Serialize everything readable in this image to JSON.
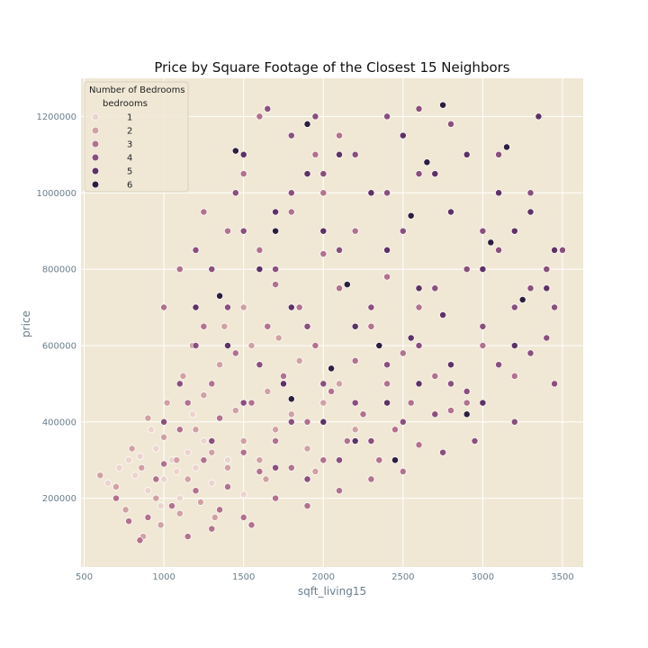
{
  "chart_data": {
    "type": "scatter",
    "title": "Price by Square Footage of the Closest 15 Neighbors",
    "xlabel": "sqft_living15",
    "ylabel": "price",
    "xlim": [
      480,
      3630
    ],
    "ylim": [
      20000,
      1300000
    ],
    "xticks": [
      500,
      1000,
      1500,
      2000,
      2500,
      3000,
      3500
    ],
    "yticks": [
      200000,
      400000,
      600000,
      800000,
      1000000,
      1200000
    ],
    "grid": true,
    "colors": {
      "background": "#f0e8d5",
      "grid": "#ffffff",
      "marker_edge": "#ffffff"
    },
    "legend": {
      "title": "Number of Bedrooms",
      "subtitle": "bedrooms",
      "placement": "top-left",
      "entries": [
        {
          "label": "1",
          "color": "#ecd3cd"
        },
        {
          "label": "2",
          "color": "#d0a0a2"
        },
        {
          "label": "3",
          "color": "#b2718d"
        },
        {
          "label": "4",
          "color": "#8b4f7d"
        },
        {
          "label": "5",
          "color": "#5e3265"
        },
        {
          "label": "6",
          "color": "#2d1e3e"
        }
      ]
    },
    "series": [
      {
        "name": "1",
        "color": "#ecd3cd",
        "points": [
          [
            650,
            240000
          ],
          [
            720,
            280000
          ],
          [
            780,
            300000
          ],
          [
            820,
            260000
          ],
          [
            900,
            220000
          ],
          [
            950,
            330000
          ],
          [
            1000,
            250000
          ],
          [
            1050,
            300000
          ],
          [
            1100,
            200000
          ],
          [
            1150,
            320000
          ],
          [
            1200,
            280000
          ],
          [
            1250,
            350000
          ],
          [
            1300,
            240000
          ],
          [
            850,
            310000
          ],
          [
            920,
            380000
          ],
          [
            1080,
            270000
          ],
          [
            1180,
            420000
          ],
          [
            1400,
            300000
          ],
          [
            1500,
            210000
          ],
          [
            980,
            180000
          ]
        ]
      },
      {
        "name": "2",
        "color": "#d0a0a2",
        "points": [
          [
            600,
            260000
          ],
          [
            700,
            230000
          ],
          [
            760,
            170000
          ],
          [
            800,
            330000
          ],
          [
            860,
            280000
          ],
          [
            900,
            410000
          ],
          [
            950,
            200000
          ],
          [
            1000,
            360000
          ],
          [
            1020,
            450000
          ],
          [
            1080,
            300000
          ],
          [
            1120,
            520000
          ],
          [
            1150,
            250000
          ],
          [
            1200,
            380000
          ],
          [
            1250,
            470000
          ],
          [
            1300,
            320000
          ],
          [
            1350,
            550000
          ],
          [
            1400,
            280000
          ],
          [
            1450,
            430000
          ],
          [
            1500,
            350000
          ],
          [
            1550,
            600000
          ],
          [
            1600,
            300000
          ],
          [
            1650,
            480000
          ],
          [
            1700,
            380000
          ],
          [
            1800,
            420000
          ],
          [
            1900,
            330000
          ],
          [
            2000,
            450000
          ],
          [
            1100,
            160000
          ],
          [
            1230,
            190000
          ],
          [
            1320,
            150000
          ],
          [
            980,
            130000
          ],
          [
            870,
            100000
          ],
          [
            1500,
            700000
          ],
          [
            1720,
            620000
          ],
          [
            1640,
            250000
          ],
          [
            1380,
            650000
          ],
          [
            2100,
            500000
          ],
          [
            2200,
            380000
          ],
          [
            1850,
            560000
          ],
          [
            1950,
            270000
          ],
          [
            1180,
            600000
          ]
        ]
      },
      {
        "name": "3",
        "color": "#b2718d",
        "points": [
          [
            700,
            200000
          ],
          [
            780,
            140000
          ],
          [
            850,
            90000
          ],
          [
            900,
            150000
          ],
          [
            950,
            250000
          ],
          [
            1000,
            290000
          ],
          [
            1050,
            180000
          ],
          [
            1100,
            380000
          ],
          [
            1150,
            450000
          ],
          [
            1200,
            220000
          ],
          [
            1250,
            300000
          ],
          [
            1300,
            500000
          ],
          [
            1350,
            410000
          ],
          [
            1400,
            230000
          ],
          [
            1450,
            580000
          ],
          [
            1500,
            320000
          ],
          [
            1550,
            450000
          ],
          [
            1600,
            270000
          ],
          [
            1650,
            650000
          ],
          [
            1700,
            350000
          ],
          [
            1750,
            520000
          ],
          [
            1800,
            280000
          ],
          [
            1850,
            700000
          ],
          [
            1900,
            400000
          ],
          [
            1950,
            600000
          ],
          [
            2000,
            300000
          ],
          [
            2050,
            480000
          ],
          [
            2100,
            750000
          ],
          [
            2150,
            350000
          ],
          [
            2200,
            560000
          ],
          [
            2250,
            420000
          ],
          [
            2300,
            650000
          ],
          [
            2350,
            300000
          ],
          [
            2400,
            500000
          ],
          [
            2450,
            380000
          ],
          [
            2500,
            580000
          ],
          [
            2550,
            450000
          ],
          [
            2600,
            340000
          ],
          [
            2700,
            520000
          ],
          [
            2800,
            430000
          ],
          [
            1000,
            700000
          ],
          [
            1100,
            800000
          ],
          [
            1250,
            650000
          ],
          [
            1400,
            900000
          ],
          [
            1600,
            850000
          ],
          [
            1800,
            950000
          ],
          [
            2000,
            1000000
          ],
          [
            2200,
            900000
          ],
          [
            1300,
            120000
          ],
          [
            1500,
            150000
          ],
          [
            1700,
            200000
          ],
          [
            1900,
            180000
          ],
          [
            2100,
            220000
          ],
          [
            1150,
            100000
          ],
          [
            1350,
            170000
          ],
          [
            1550,
            130000
          ],
          [
            2300,
            250000
          ],
          [
            2500,
            270000
          ],
          [
            2000,
            840000
          ],
          [
            1700,
            760000
          ],
          [
            1950,
            1100000
          ],
          [
            1500,
            1050000
          ],
          [
            1250,
            950000
          ],
          [
            2400,
            780000
          ],
          [
            2600,
            700000
          ],
          [
            1600,
            1200000
          ],
          [
            2100,
            1150000
          ],
          [
            3000,
            600000
          ],
          [
            2900,
            450000
          ],
          [
            3200,
            520000
          ]
        ]
      },
      {
        "name": "4",
        "color": "#8b4f7d",
        "points": [
          [
            1000,
            400000
          ],
          [
            1100,
            500000
          ],
          [
            1200,
            600000
          ],
          [
            1300,
            350000
          ],
          [
            1400,
            700000
          ],
          [
            1500,
            450000
          ],
          [
            1600,
            550000
          ],
          [
            1700,
            800000
          ],
          [
            1800,
            400000
          ],
          [
            1900,
            650000
          ],
          [
            2000,
            500000
          ],
          [
            2100,
            850000
          ],
          [
            2200,
            450000
          ],
          [
            2300,
            700000
          ],
          [
            2400,
            550000
          ],
          [
            2500,
            900000
          ],
          [
            2600,
            600000
          ],
          [
            2700,
            750000
          ],
          [
            2800,
            500000
          ],
          [
            2900,
            800000
          ],
          [
            3000,
            650000
          ],
          [
            3100,
            850000
          ],
          [
            3200,
            700000
          ],
          [
            3300,
            750000
          ],
          [
            3400,
            800000
          ],
          [
            3450,
            700000
          ],
          [
            3500,
            850000
          ],
          [
            1800,
            1000000
          ],
          [
            2000,
            1050000
          ],
          [
            2200,
            1100000
          ],
          [
            2400,
            1000000
          ],
          [
            2600,
            1050000
          ],
          [
            2800,
            950000
          ],
          [
            3000,
            900000
          ],
          [
            1500,
            900000
          ],
          [
            1300,
            800000
          ],
          [
            1200,
            850000
          ],
          [
            2100,
            300000
          ],
          [
            2300,
            350000
          ],
          [
            2500,
            400000
          ],
          [
            2700,
            420000
          ],
          [
            2900,
            480000
          ],
          [
            3100,
            550000
          ],
          [
            3300,
            580000
          ],
          [
            3400,
            620000
          ],
          [
            1700,
            280000
          ],
          [
            1900,
            250000
          ],
          [
            2400,
            1200000
          ],
          [
            2600,
            1220000
          ],
          [
            2800,
            1180000
          ],
          [
            3100,
            1100000
          ],
          [
            3300,
            1000000
          ],
          [
            1800,
            1150000
          ],
          [
            1950,
            1200000
          ],
          [
            1650,
            1220000
          ],
          [
            3450,
            500000
          ],
          [
            3200,
            400000
          ],
          [
            2950,
            350000
          ],
          [
            2750,
            320000
          ],
          [
            1450,
            1000000
          ]
        ]
      },
      {
        "name": "5",
        "color": "#5e3265",
        "points": [
          [
            1200,
            700000
          ],
          [
            1400,
            600000
          ],
          [
            1600,
            800000
          ],
          [
            1800,
            700000
          ],
          [
            2000,
            900000
          ],
          [
            2200,
            650000
          ],
          [
            2400,
            850000
          ],
          [
            2600,
            750000
          ],
          [
            2800,
            950000
          ],
          [
            3000,
            800000
          ],
          [
            3200,
            900000
          ],
          [
            3400,
            750000
          ],
          [
            2100,
            1100000
          ],
          [
            2300,
            1000000
          ],
          [
            2500,
            1150000
          ],
          [
            2700,
            1050000
          ],
          [
            2900,
            1100000
          ],
          [
            3100,
            1000000
          ],
          [
            3300,
            950000
          ],
          [
            1500,
            1100000
          ],
          [
            1700,
            950000
          ],
          [
            1900,
            1050000
          ],
          [
            2400,
            450000
          ],
          [
            2600,
            500000
          ],
          [
            2800,
            550000
          ],
          [
            3000,
            450000
          ],
          [
            3200,
            600000
          ],
          [
            2000,
            400000
          ],
          [
            2200,
            350000
          ],
          [
            1750,
            500000
          ],
          [
            2550,
            620000
          ],
          [
            2750,
            680000
          ],
          [
            3350,
            1200000
          ],
          [
            3450,
            850000
          ]
        ]
      },
      {
        "name": "6",
        "color": "#2d1e3e",
        "points": [
          [
            1450,
            1110000
          ],
          [
            1700,
            900000
          ],
          [
            1900,
            1180000
          ],
          [
            2150,
            760000
          ],
          [
            2350,
            600000
          ],
          [
            2550,
            940000
          ],
          [
            2750,
            1230000
          ],
          [
            2900,
            420000
          ],
          [
            3050,
            870000
          ],
          [
            3250,
            720000
          ],
          [
            2450,
            300000
          ],
          [
            1800,
            460000
          ],
          [
            2050,
            540000
          ],
          [
            3150,
            1120000
          ],
          [
            2650,
            1080000
          ],
          [
            1350,
            730000
          ]
        ]
      }
    ]
  }
}
